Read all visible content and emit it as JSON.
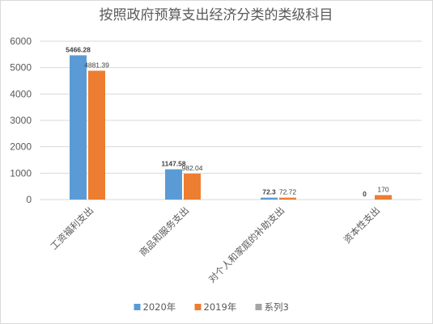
{
  "chart_data": {
    "type": "bar",
    "title": "按照政府预算支出经济分类的类级科目",
    "categories": [
      "工资福利支出",
      "商品和服务支出",
      "对个人和家庭的补助支出",
      "资本性支出"
    ],
    "series": [
      {
        "name": "2020年",
        "color": "#5b9bd5",
        "values": [
          5466.28,
          1147.58,
          72.3,
          0
        ],
        "labels": [
          "5466.28",
          "1147.58",
          "72.3",
          "0"
        ]
      },
      {
        "name": "2019年",
        "color": "#ed7d31",
        "values": [
          4881.39,
          982.04,
          72.72,
          170
        ],
        "labels": [
          "4881.39",
          "982.04",
          "72.72",
          "170"
        ]
      },
      {
        "name": "系列3",
        "color": "#a5a5a5",
        "values": [
          null,
          null,
          null,
          null
        ],
        "labels": [
          "",
          "",
          "",
          ""
        ]
      }
    ],
    "ylim": [
      0,
      6000
    ],
    "yticks": [
      0,
      1000,
      2000,
      3000,
      4000,
      5000,
      6000
    ],
    "xlabel": "",
    "ylabel": "",
    "grid": true,
    "legend_position": "bottom"
  }
}
